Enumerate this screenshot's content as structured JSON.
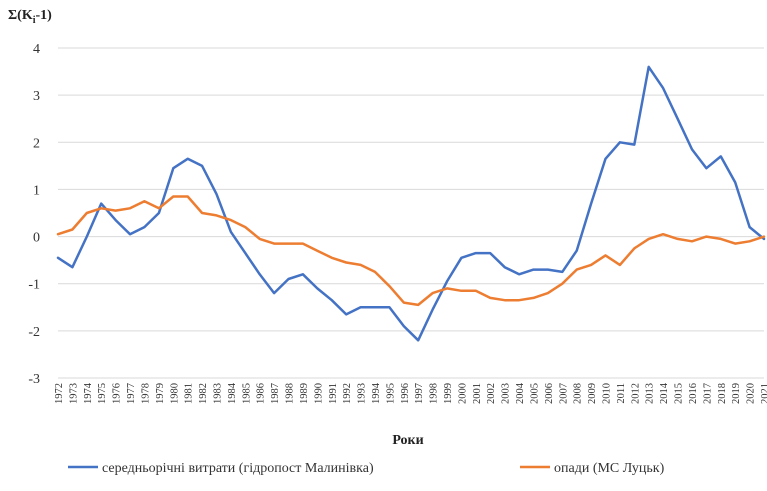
{
  "chart_data": {
    "type": "line",
    "ylabel_prefix": "Σ(K",
    "ylabel_sub": "i",
    "ylabel_suffix": "-1)",
    "xlabel": "Роки",
    "ylim": [
      -3,
      4
    ],
    "yticks": [
      -3,
      -2,
      -1,
      0,
      1,
      2,
      3,
      4
    ],
    "grid": true,
    "legend": "bottom",
    "x": [
      1972,
      1973,
      1974,
      1975,
      1976,
      1977,
      1978,
      1979,
      1980,
      1981,
      1982,
      1983,
      1984,
      1985,
      1986,
      1987,
      1988,
      1989,
      1990,
      1991,
      1992,
      1993,
      1994,
      1995,
      1996,
      1997,
      1998,
      1999,
      2000,
      2001,
      2002,
      2003,
      2004,
      2005,
      2006,
      2007,
      2008,
      2009,
      2010,
      2011,
      2012,
      2013,
      2014,
      2015,
      2016,
      2017,
      2018,
      2019,
      2020,
      2021
    ],
    "series": [
      {
        "name": "середньорічні витрати (гідропост Малинівка)",
        "color": "#4472C4",
        "values": [
          -0.45,
          -0.65,
          0.0,
          0.7,
          0.35,
          0.05,
          0.2,
          0.5,
          1.45,
          1.65,
          1.5,
          0.9,
          0.1,
          -0.35,
          -0.8,
          -1.2,
          -0.9,
          -0.8,
          -1.1,
          -1.35,
          -1.65,
          -1.5,
          -1.5,
          -1.5,
          -1.9,
          -2.2,
          -1.55,
          -0.95,
          -0.45,
          -0.35,
          -0.35,
          -0.65,
          -0.8,
          -0.7,
          -0.7,
          -0.75,
          -0.3,
          0.7,
          1.65,
          2.0,
          1.95,
          3.6,
          3.15,
          2.5,
          1.85,
          1.45,
          1.7,
          1.15,
          0.2,
          -0.05
        ]
      },
      {
        "name": "опади (МС Луцьк)",
        "color": "#ED7D31",
        "values": [
          0.05,
          0.15,
          0.5,
          0.6,
          0.55,
          0.6,
          0.75,
          0.6,
          0.85,
          0.85,
          0.5,
          0.45,
          0.35,
          0.2,
          -0.05,
          -0.15,
          -0.15,
          -0.15,
          -0.3,
          -0.45,
          -0.55,
          -0.6,
          -0.75,
          -1.05,
          -1.4,
          -1.45,
          -1.2,
          -1.1,
          -1.15,
          -1.15,
          -1.3,
          -1.35,
          -1.35,
          -1.3,
          -1.2,
          -1.0,
          -0.7,
          -0.6,
          -0.4,
          -0.6,
          -0.25,
          -0.05,
          0.05,
          -0.05,
          -0.1,
          0.0,
          -0.05,
          -0.15,
          -0.1,
          0.0
        ]
      }
    ]
  }
}
